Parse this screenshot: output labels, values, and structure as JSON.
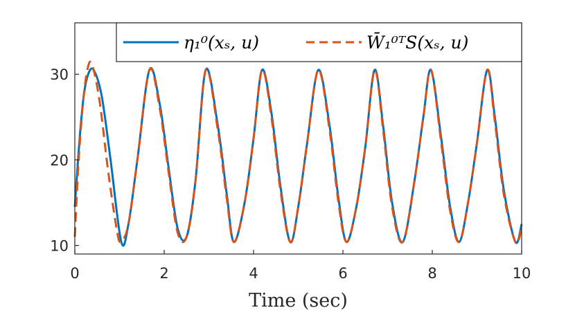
{
  "chart_data": {
    "type": "line",
    "xlabel": "Time (sec)",
    "ylabel": "",
    "xlim": [
      0,
      10
    ],
    "ylim": [
      9,
      36
    ],
    "x_ticks": [
      0,
      2,
      4,
      6,
      8,
      10
    ],
    "y_ticks": [
      10,
      20,
      30
    ],
    "x_tick_labels": [
      "0",
      "2",
      "4",
      "6",
      "8",
      "10"
    ],
    "y_tick_labels": [
      "10",
      "20",
      "30"
    ],
    "grid": false,
    "legend_position": "top-right",
    "colors": {
      "series1": "#0072BD",
      "series2": "#D95319"
    },
    "series": [
      {
        "name": "η₁⁰(xₛ, u)",
        "style": "solid",
        "x": [
          0,
          0.1,
          0.2,
          0.3,
          0.42,
          0.6,
          0.8,
          1.04,
          1.2,
          1.4,
          1.67,
          1.9,
          2.1,
          2.3,
          2.5,
          2.7,
          2.93,
          3.2,
          3.4,
          3.56,
          3.8,
          4.0,
          4.19,
          4.4,
          4.6,
          4.82,
          5.0,
          5.2,
          5.45,
          5.7,
          5.9,
          6.08,
          6.3,
          6.5,
          6.71,
          6.9,
          7.1,
          7.34,
          7.6,
          7.8,
          7.97,
          8.2,
          8.4,
          8.6,
          8.8,
          9.0,
          9.23,
          9.4,
          9.6,
          9.86,
          10.0
        ],
        "values": [
          14.5,
          22.0,
          27.5,
          30.0,
          30.5,
          27.5,
          20.0,
          10.4,
          12.5,
          20.0,
          30.5,
          26.5,
          19.0,
          12.0,
          11.0,
          17.5,
          30.5,
          24.0,
          16.0,
          10.4,
          15.0,
          22.5,
          30.5,
          25.5,
          17.0,
          10.4,
          14.5,
          22.0,
          30.5,
          24.0,
          15.5,
          10.4,
          14.5,
          21.5,
          30.5,
          24.0,
          15.0,
          10.4,
          17.5,
          25.0,
          30.5,
          22.5,
          14.5,
          10.4,
          15.0,
          22.0,
          30.5,
          25.0,
          16.5,
          10.4,
          12.5
        ]
      },
      {
        "name": "W̄₁⁰ᵀS(xₛ, u)",
        "style": "dashed",
        "x": [
          0,
          0.08,
          0.18,
          0.28,
          0.38,
          0.55,
          0.75,
          0.95,
          1.04,
          1.2,
          1.4,
          1.67,
          1.9,
          2.1,
          2.3,
          2.5,
          2.7,
          2.93,
          3.2,
          3.4,
          3.56,
          3.8,
          4.0,
          4.19,
          4.4,
          4.6,
          4.82,
          5.0,
          5.2,
          5.45,
          5.7,
          5.9,
          6.08,
          6.3,
          6.5,
          6.71,
          6.9,
          7.1,
          7.34,
          7.6,
          7.8,
          7.97,
          8.2,
          8.4,
          8.6,
          8.8,
          9.0,
          9.23,
          9.4,
          9.6,
          9.86,
          10.0
        ],
        "values": [
          11.0,
          19.5,
          26.5,
          30.5,
          31.2,
          27.0,
          18.5,
          11.5,
          10.5,
          12.5,
          20.0,
          30.5,
          26.0,
          18.5,
          11.5,
          11.0,
          17.5,
          30.5,
          23.5,
          15.5,
          10.4,
          15.0,
          22.5,
          30.5,
          25.0,
          16.5,
          10.4,
          14.5,
          22.0,
          30.5,
          23.5,
          15.0,
          10.4,
          14.5,
          21.5,
          30.5,
          23.5,
          14.5,
          10.4,
          17.5,
          25.0,
          30.5,
          22.0,
          14.0,
          10.4,
          15.0,
          22.0,
          30.5,
          24.5,
          16.0,
          10.4,
          12.0
        ]
      }
    ]
  }
}
